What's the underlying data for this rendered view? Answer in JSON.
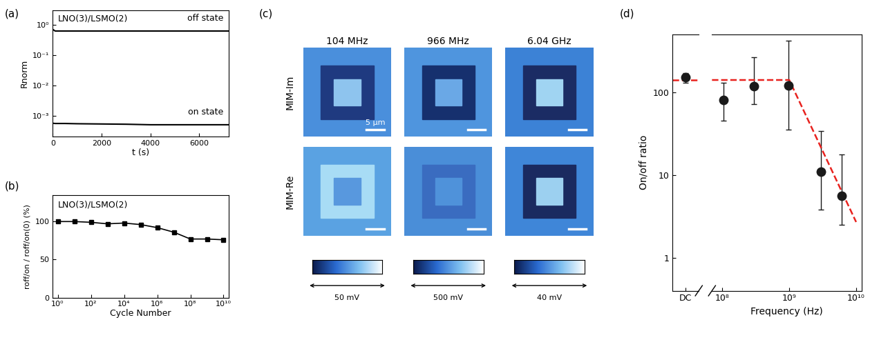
{
  "chart_data": [
    {
      "panel": "(a)",
      "type": "line",
      "annotation": "LNO(3)/LSMO(2)",
      "xlabel": "t (s)",
      "ylabel": "Rnorm",
      "log": "y",
      "x": [
        0,
        100,
        500,
        1000,
        2000,
        3000,
        4000,
        5000,
        6000,
        7200
      ],
      "series": [
        {
          "name": "off state",
          "color": "#000000",
          "values": [
            0.7,
            0.62,
            0.62,
            0.62,
            0.62,
            0.62,
            0.62,
            0.62,
            0.62,
            0.62
          ]
        },
        {
          "name": "on state",
          "color": "#000000",
          "values": [
            0.00056,
            0.00055,
            0.00055,
            0.00054,
            0.00053,
            0.00052,
            0.0005,
            0.0005,
            0.0005,
            0.0005
          ]
        }
      ],
      "xlim": [
        0,
        7200
      ],
      "xticks": [
        0,
        2000,
        4000,
        6000
      ],
      "ylim": [
        0.0002,
        3
      ],
      "yticks": [
        {
          "value": 0.001,
          "label": "10⁻³"
        },
        {
          "value": 0.01,
          "label": "10⁻²"
        },
        {
          "value": 0.1,
          "label": "10⁻¹"
        },
        {
          "value": 1,
          "label": "10⁰"
        }
      ]
    },
    {
      "panel": "(b)",
      "type": "line",
      "annotation": "LNO(3)/LSMO(2)",
      "xlabel": "Cycle Number",
      "ylabel": "roff/on / roff/on(0) (%)",
      "log": "x",
      "x": [
        1,
        10,
        100,
        1000,
        10000,
        100000,
        1000000,
        10000000,
        100000000,
        1000000000,
        10000000000
      ],
      "values": [
        100,
        100,
        99,
        97,
        98,
        96,
        92,
        86,
        77,
        77,
        76
      ],
      "color": "#000000",
      "marker": "s",
      "line_style": "solid",
      "xlim": [
        0.5,
        20000000000
      ],
      "xticks": [
        {
          "value": 1,
          "label": "10⁰"
        },
        {
          "value": 100,
          "label": "10²"
        },
        {
          "value": 10000,
          "label": "10⁴"
        },
        {
          "value": 1000000,
          "label": "10⁶"
        },
        {
          "value": 100000000,
          "label": "10⁸"
        },
        {
          "value": 10000000000,
          "label": "10¹⁰"
        }
      ],
      "ylim": [
        0,
        135
      ],
      "yticks": [
        0,
        50,
        100
      ]
    },
    {
      "panel": "(c)",
      "type": "image_grid",
      "columns": [
        "104 MHz",
        "966 MHz",
        "6.04 GHz"
      ],
      "rows": [
        "MIM-Im",
        "MIM-Re"
      ],
      "scale_bar": "5 μm",
      "colorbar_labels": [
        "50 mV",
        "500 mV",
        "40 mV"
      ],
      "cells": [
        [
          {
            "colors": [
              "#4a8fdc",
              "#1f3a80",
              "#8ec4ee"
            ]
          },
          {
            "colors": [
              "#4f95de",
              "#16306e",
              "#6aa8e6"
            ]
          },
          {
            "colors": [
              "#3c82d6",
              "#1b2c64",
              "#a0d4f2"
            ]
          }
        ],
        [
          {
            "colors": [
              "#5aa2e2",
              "#a8dcf5",
              "#5898de"
            ]
          },
          {
            "colors": [
              "#4a8ed8",
              "#3a6cc0",
              "#4f92da"
            ]
          },
          {
            "colors": [
              "#3f86d8",
              "#1a2a60",
              "#9cd0f0"
            ]
          }
        ]
      ]
    },
    {
      "panel": "(d)",
      "type": "scatter",
      "xlabel": "Frequency (Hz)",
      "ylabel": "On/off ratio",
      "log": true,
      "color": "#1a1a1a",
      "dc": {
        "label": "DC",
        "value": 150,
        "y_low": 130,
        "y_high": 170
      },
      "x": [
        104000000,
        300000000,
        966000000,
        3000000000,
        6040000000
      ],
      "values": [
        80,
        118,
        120,
        11,
        5.6
      ],
      "y_low": [
        45,
        72,
        35,
        3.8,
        2.5
      ],
      "y_high": [
        130,
        265,
        420,
        34,
        17.5
      ],
      "xlim": [
        70000000,
        12000000000
      ],
      "xticks": [
        {
          "value": 100000000,
          "label": "10⁸"
        },
        {
          "value": 1000000000,
          "label": "10⁹"
        },
        {
          "value": 10000000000,
          "label": "10¹⁰"
        }
      ],
      "ylim": [
        0.4,
        500
      ],
      "yticks": [
        1,
        10,
        100
      ],
      "fit": {
        "color": "#e8221e",
        "line_style": "dashed",
        "dc_value": 140,
        "x": [
          70000000,
          1000000000,
          10000000000
        ],
        "values": [
          140,
          140,
          2.7
        ]
      }
    }
  ]
}
